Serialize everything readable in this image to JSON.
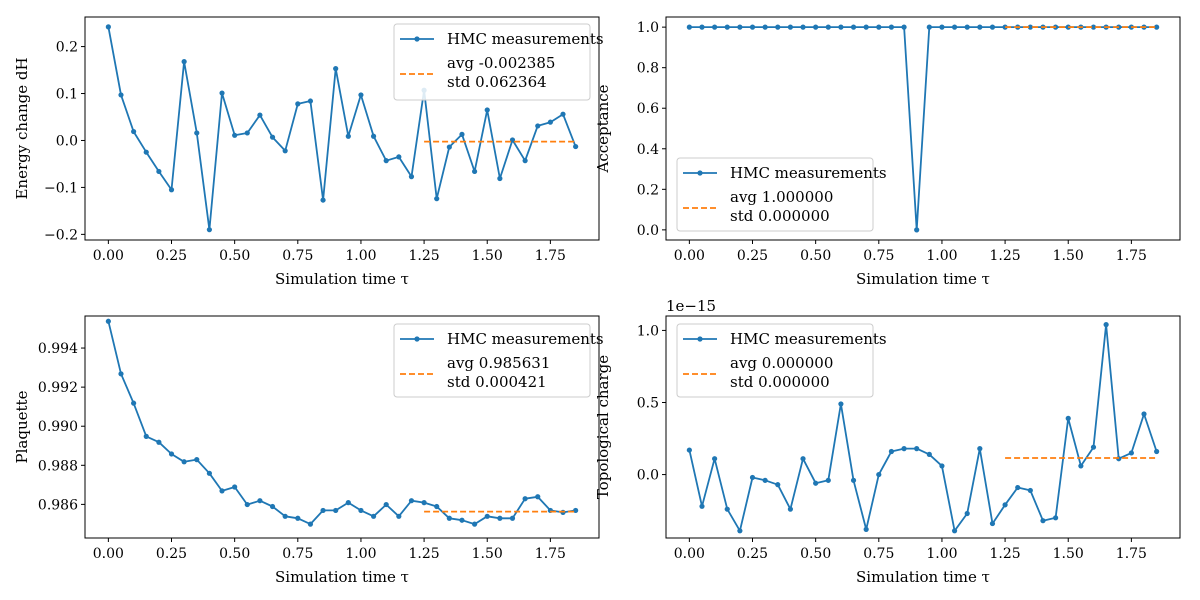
{
  "figure": {
    "x_label": "Simulation time τ"
  },
  "colors": {
    "series": "#1f77b4",
    "average": "#ff7f0e",
    "axes": "#000000",
    "legend_border": "#cccccc"
  },
  "chart_data": [
    {
      "type": "line",
      "ylabel": "Energy change dH",
      "xlabel": "Simulation time τ",
      "xlim": [
        -0.0925,
        1.9425
      ],
      "ylim": [
        -0.212,
        0.263
      ],
      "xticks": [
        0.0,
        0.25,
        0.5,
        0.75,
        1.0,
        1.25,
        1.5,
        1.75
      ],
      "xtick_labels": [
        "0.00",
        "0.25",
        "0.50",
        "0.75",
        "1.00",
        "1.25",
        "1.50",
        "1.75"
      ],
      "yticks": [
        -0.2,
        -0.1,
        0.0,
        0.1,
        0.2
      ],
      "ytick_labels": [
        "−0.2",
        "−0.1",
        "0.0",
        "0.1",
        "0.2"
      ],
      "offset_text": "",
      "legend_position": "top-right",
      "series": [
        {
          "name": "HMC measurements",
          "x": [
            0.0,
            0.05,
            0.1,
            0.15,
            0.2,
            0.25,
            0.3,
            0.35,
            0.4,
            0.45,
            0.5,
            0.55,
            0.6,
            0.65,
            0.7,
            0.75,
            0.8,
            0.85,
            0.9,
            0.95,
            1.0,
            1.05,
            1.1,
            1.15,
            1.2,
            1.25,
            1.3,
            1.35,
            1.4,
            1.45,
            1.5,
            1.55,
            1.6,
            1.65,
            1.7,
            1.75,
            1.8,
            1.85
          ],
          "values": [
            0.242,
            0.097,
            0.019,
            -0.025,
            -0.066,
            -0.105,
            0.168,
            0.016,
            -0.19,
            0.101,
            0.011,
            0.016,
            0.054,
            0.007,
            -0.022,
            0.078,
            0.084,
            -0.127,
            0.153,
            0.009,
            0.097,
            0.009,
            -0.043,
            -0.035,
            -0.077,
            0.107,
            -0.124,
            -0.014,
            0.013,
            -0.066,
            0.065,
            -0.081,
            0.001,
            -0.043,
            0.031,
            0.039,
            0.056,
            -0.013
          ]
        }
      ],
      "average": {
        "x_range": [
          1.25,
          1.85
        ],
        "value": -0.002385,
        "label_avg": "avg -0.002385",
        "label_std": "std 0.062364"
      }
    },
    {
      "type": "line",
      "ylabel": "Acceptance",
      "xlabel": "Simulation time τ",
      "xlim": [
        -0.0925,
        1.9425
      ],
      "ylim": [
        -0.05,
        1.05
      ],
      "xticks": [
        0.0,
        0.25,
        0.5,
        0.75,
        1.0,
        1.25,
        1.5,
        1.75
      ],
      "xtick_labels": [
        "0.00",
        "0.25",
        "0.50",
        "0.75",
        "1.00",
        "1.25",
        "1.50",
        "1.75"
      ],
      "yticks": [
        0.0,
        0.2,
        0.4,
        0.6,
        0.8,
        1.0
      ],
      "ytick_labels": [
        "0.0",
        "0.2",
        "0.4",
        "0.6",
        "0.8",
        "1.0"
      ],
      "offset_text": "",
      "legend_position": "lower-left",
      "series": [
        {
          "name": "HMC measurements",
          "x": [
            0.0,
            0.05,
            0.1,
            0.15,
            0.2,
            0.25,
            0.3,
            0.35,
            0.4,
            0.45,
            0.5,
            0.55,
            0.6,
            0.65,
            0.7,
            0.75,
            0.8,
            0.85,
            0.9,
            0.95,
            1.0,
            1.05,
            1.1,
            1.15,
            1.2,
            1.25,
            1.3,
            1.35,
            1.4,
            1.45,
            1.5,
            1.55,
            1.6,
            1.65,
            1.7,
            1.75,
            1.8,
            1.85
          ],
          "values": [
            1,
            1,
            1,
            1,
            1,
            1,
            1,
            1,
            1,
            1,
            1,
            1,
            1,
            1,
            1,
            1,
            1,
            1,
            0,
            1,
            1,
            1,
            1,
            1,
            1,
            1,
            1,
            1,
            1,
            1,
            1,
            1,
            1,
            1,
            1,
            1,
            1,
            1
          ]
        }
      ],
      "average": {
        "x_range": [
          1.25,
          1.85
        ],
        "value": 1.0,
        "label_avg": "avg 1.000000",
        "label_std": "std 0.000000"
      }
    },
    {
      "type": "line",
      "ylabel": "Plaquette",
      "xlabel": "Simulation time τ",
      "xlim": [
        -0.0925,
        1.9425
      ],
      "ylim": [
        0.98428,
        0.99564
      ],
      "xticks": [
        0.0,
        0.25,
        0.5,
        0.75,
        1.0,
        1.25,
        1.5,
        1.75
      ],
      "xtick_labels": [
        "0.00",
        "0.25",
        "0.50",
        "0.75",
        "1.00",
        "1.25",
        "1.50",
        "1.75"
      ],
      "yticks": [
        0.986,
        0.988,
        0.99,
        0.992,
        0.994
      ],
      "ytick_labels": [
        "0.986",
        "0.988",
        "0.990",
        "0.992",
        "0.994"
      ],
      "offset_text": "",
      "legend_position": "top-right",
      "series": [
        {
          "name": "HMC measurements",
          "x": [
            0.0,
            0.05,
            0.1,
            0.15,
            0.2,
            0.25,
            0.3,
            0.35,
            0.4,
            0.45,
            0.5,
            0.55,
            0.6,
            0.65,
            0.7,
            0.75,
            0.8,
            0.85,
            0.9,
            0.95,
            1.0,
            1.05,
            1.1,
            1.15,
            1.2,
            1.25,
            1.3,
            1.35,
            1.4,
            1.45,
            1.5,
            1.55,
            1.6,
            1.65,
            1.7,
            1.75,
            1.8,
            1.85
          ],
          "values": [
            0.99537,
            0.99268,
            0.99118,
            0.98948,
            0.98918,
            0.98858,
            0.98818,
            0.98829,
            0.98759,
            0.98669,
            0.98689,
            0.98599,
            0.98619,
            0.98589,
            0.98539,
            0.98529,
            0.98499,
            0.98569,
            0.98569,
            0.98609,
            0.98569,
            0.98539,
            0.98599,
            0.98539,
            0.98619,
            0.98609,
            0.98589,
            0.98529,
            0.98519,
            0.98499,
            0.98539,
            0.98529,
            0.98529,
            0.98629,
            0.98639,
            0.98569,
            0.98559,
            0.98569
          ]
        }
      ],
      "average": {
        "x_range": [
          1.25,
          1.85
        ],
        "value": 0.985631,
        "label_avg": "avg 0.985631",
        "label_std": "std 0.000421"
      }
    },
    {
      "type": "line",
      "ylabel": "Topological charge",
      "xlabel": "Simulation time τ",
      "xlim": [
        -0.0925,
        1.9425
      ],
      "ylim": [
        -0.44,
        1.1
      ],
      "xticks": [
        0.0,
        0.25,
        0.5,
        0.75,
        1.0,
        1.25,
        1.5,
        1.75
      ],
      "xtick_labels": [
        "0.00",
        "0.25",
        "0.50",
        "0.75",
        "1.00",
        "1.25",
        "1.50",
        "1.75"
      ],
      "yticks": [
        0.0,
        0.5,
        1.0
      ],
      "ytick_labels": [
        "0.0",
        "0.5",
        "1.0"
      ],
      "offset_text": "1e−15",
      "legend_position": "top-left",
      "series": [
        {
          "name": "HMC measurements",
          "x": [
            0.0,
            0.05,
            0.1,
            0.15,
            0.2,
            0.25,
            0.3,
            0.35,
            0.4,
            0.45,
            0.5,
            0.55,
            0.6,
            0.65,
            0.7,
            0.75,
            0.8,
            0.85,
            0.9,
            0.95,
            1.0,
            1.05,
            1.1,
            1.15,
            1.2,
            1.25,
            1.3,
            1.35,
            1.4,
            1.45,
            1.5,
            1.55,
            1.6,
            1.65,
            1.7,
            1.75,
            1.8,
            1.85
          ],
          "values": [
            0.17,
            -0.22,
            0.11,
            -0.24,
            -0.39,
            -0.02,
            -0.04,
            -0.07,
            -0.24,
            0.11,
            -0.06,
            -0.04,
            0.49,
            -0.04,
            -0.38,
            0.0,
            0.16,
            0.18,
            0.18,
            0.14,
            0.06,
            -0.39,
            -0.27,
            0.18,
            -0.34,
            -0.21,
            -0.09,
            -0.11,
            -0.32,
            -0.3,
            0.39,
            0.06,
            0.19,
            1.04,
            0.11,
            0.15,
            0.42,
            0.16
          ]
        }
      ],
      "average": {
        "x_range": [
          1.25,
          1.85
        ],
        "value": 0.115,
        "label_avg": "avg 0.000000",
        "label_std": "std 0.000000"
      }
    }
  ]
}
